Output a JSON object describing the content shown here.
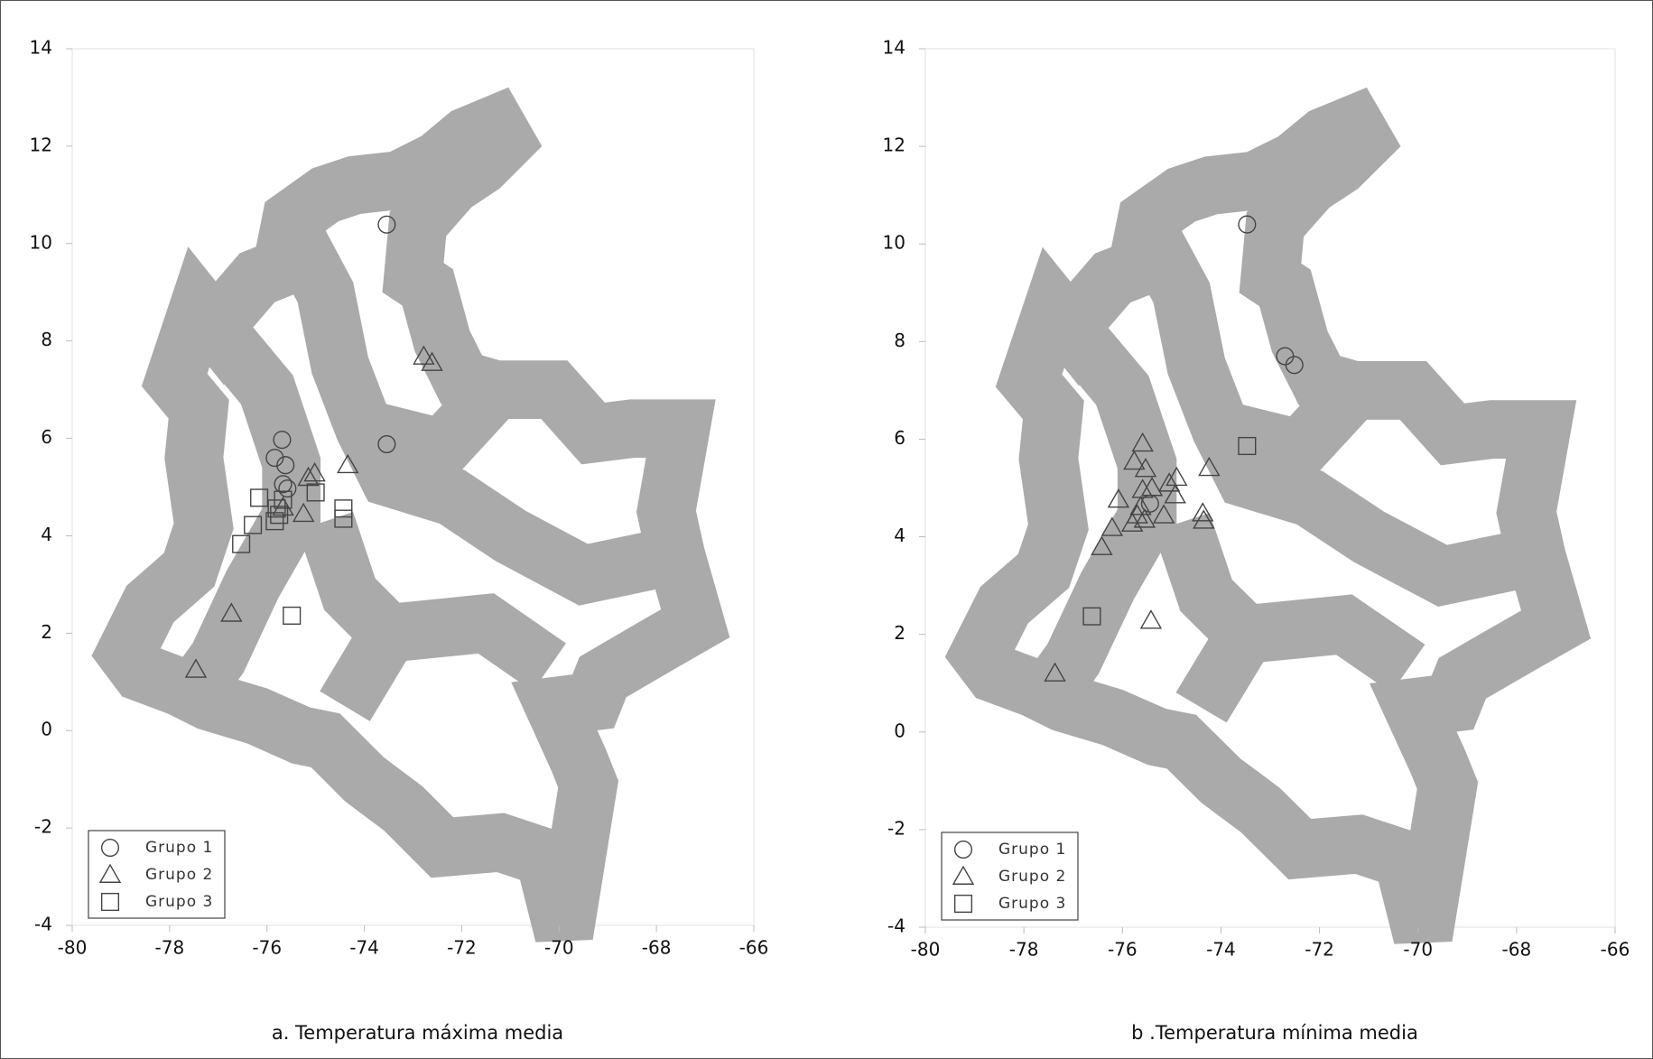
{
  "chart_data": [
    {
      "type": "scatter",
      "title": "a. Temperatura máxima media",
      "xlim": [
        -80,
        -66
      ],
      "ylim": [
        -4,
        14
      ],
      "xticks": [
        -80,
        -78,
        -76,
        -74,
        -72,
        -70,
        -68,
        -66
      ],
      "yticks": [
        -4,
        -2,
        0,
        2,
        4,
        6,
        8,
        10,
        12,
        14
      ],
      "legend": "lower left",
      "series": [
        {
          "name": "Grupo 1",
          "marker": "circle",
          "color": "#444",
          "x": [
            -73.54,
            -73.54,
            -75.69,
            -75.84,
            -75.62,
            -75.67,
            -75.58
          ],
          "values": [
            10.39,
            5.88,
            5.97,
            5.6,
            5.45,
            5.06,
            4.97
          ]
        },
        {
          "name": "Grupo 2",
          "marker": "triangle",
          "color": "#444",
          "x": [
            -72.78,
            -72.61,
            -74.34,
            -75.02,
            -75.15,
            -75.25,
            -76.73,
            -77.46,
            -75.67
          ],
          "values": [
            7.68,
            7.55,
            5.45,
            5.28,
            5.19,
            4.45,
            2.4,
            1.25,
            4.58
          ]
        },
        {
          "name": "Grupo 3",
          "marker": "square",
          "color": "#444",
          "x": [
            -76.16,
            -75.0,
            -75.8,
            -75.75,
            -75.84,
            -76.29,
            -76.53,
            -74.43,
            -74.43,
            -75.49,
            -75.67
          ],
          "values": [
            4.78,
            4.89,
            4.56,
            4.43,
            4.3,
            4.22,
            3.83,
            4.56,
            4.35,
            2.36,
            4.74
          ]
        }
      ]
    },
    {
      "type": "scatter",
      "title": "b .Temperatura mínima media",
      "xlim": [
        -80,
        -66
      ],
      "ylim": [
        -4,
        14
      ],
      "xticks": [
        -80,
        -78,
        -76,
        -74,
        -72,
        -70,
        -68,
        -66
      ],
      "yticks": [
        -4,
        -2,
        0,
        2,
        4,
        6,
        8,
        10,
        12,
        14
      ],
      "legend": "lower left",
      "series": [
        {
          "name": "Grupo 1",
          "marker": "circle",
          "color": "#444",
          "x": [
            -73.47,
            -72.7,
            -72.51,
            -75.44
          ],
          "values": [
            10.4,
            7.7,
            7.52,
            4.68
          ]
        },
        {
          "name": "Grupo 2",
          "marker": "triangle",
          "color": "#444",
          "x": [
            -75.59,
            -75.76,
            -75.53,
            -74.24,
            -74.9,
            -75.05,
            -75.59,
            -75.4,
            -74.93,
            -76.08,
            -75.63,
            -75.7,
            -75.16,
            -75.55,
            -75.8,
            -74.37,
            -74.35,
            -76.21,
            -76.42,
            -75.42,
            -77.37
          ],
          "values": [
            5.91,
            5.54,
            5.39,
            5.41,
            5.21,
            5.09,
            4.96,
            5.0,
            4.85,
            4.76,
            4.61,
            4.44,
            4.44,
            4.35,
            4.27,
            4.48,
            4.33,
            4.18,
            3.79,
            2.28,
            1.2
          ]
        },
        {
          "name": "Grupo 3",
          "marker": "square",
          "color": "#444",
          "x": [
            -73.47,
            -76.62
          ],
          "values": [
            5.86,
            2.37
          ]
        }
      ]
    }
  ]
}
